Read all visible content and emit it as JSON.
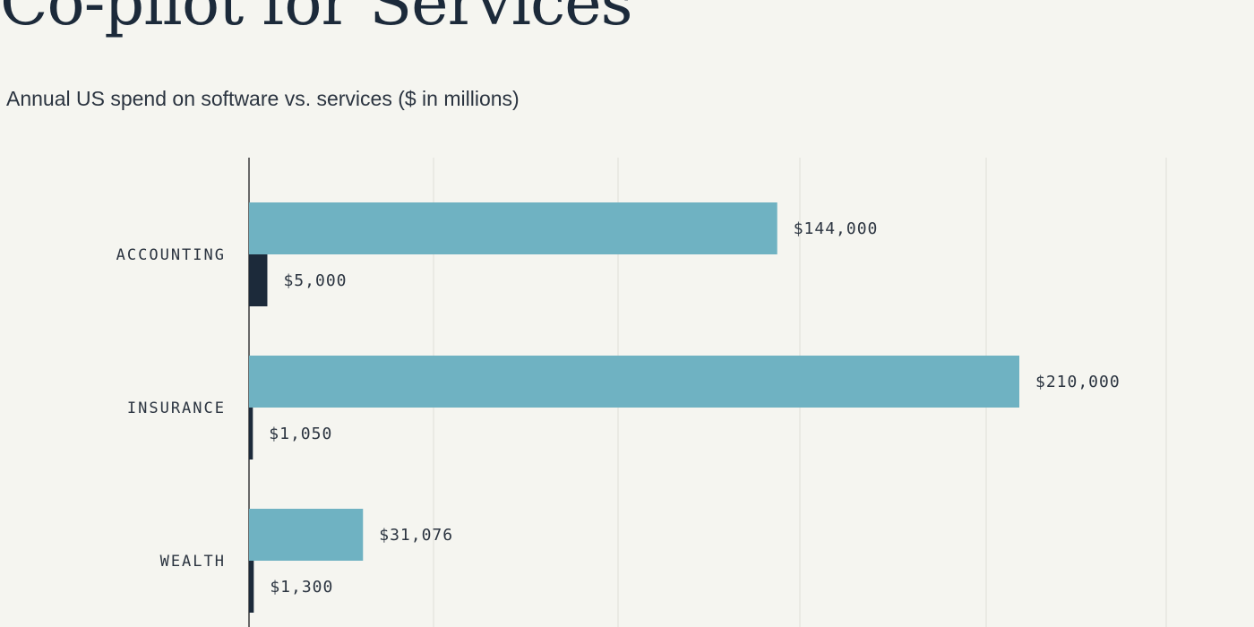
{
  "title": "Co-pilot for Services",
  "subtitle": "Annual US spend on software vs. services ($ in millions)",
  "colors": {
    "background": "#f5f5f0",
    "services_bar": "#6fb2c2",
    "software_bar": "#1c2a3a",
    "gridline": "#e6e6e0",
    "axis": "#3a3a3a",
    "text": "#2b3440"
  },
  "chart_data": {
    "type": "bar",
    "orientation": "horizontal",
    "categories": [
      "ACCOUNTING",
      "INSURANCE",
      "WEALTH"
    ],
    "series": [
      {
        "values": [
          144000,
          210000,
          31076
        ],
        "labels": [
          "$144,000",
          "$210,000",
          "$31,076"
        ],
        "color": "#6fb2c2"
      },
      {
        "values": [
          5000,
          1050,
          1300
        ],
        "labels": [
          "$5,000",
          "$1,050",
          "$1,300"
        ],
        "color": "#1c2a3a"
      }
    ],
    "xlim": [
      0,
      250000
    ],
    "grid": true,
    "legend": "none"
  }
}
